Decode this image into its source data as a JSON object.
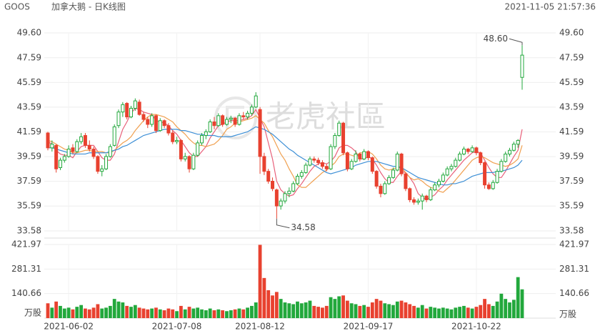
{
  "header": {
    "symbol": "GOOS",
    "name": "加拿大鹅 - 日K线图",
    "timestamp": "2021-11-05 21:57:36"
  },
  "watermark": "老虎社區",
  "chart_data": {
    "type": "candlestick",
    "categories": [
      null,
      null,
      null,
      null,
      null,
      "2021-06-02",
      null,
      null,
      null,
      null,
      null,
      null,
      null,
      null,
      null,
      null,
      null,
      null,
      null,
      null,
      null,
      null,
      null,
      null,
      null,
      null,
      null,
      null,
      null,
      null,
      null,
      "2021-07-08",
      null,
      null,
      null,
      null,
      null,
      null,
      null,
      null,
      null,
      null,
      null,
      null,
      null,
      null,
      null,
      null,
      null,
      null,
      null,
      "2021-08-12",
      null,
      null,
      null,
      null,
      null,
      null,
      null,
      null,
      null,
      null,
      null,
      null,
      null,
      null,
      null,
      null,
      null,
      null,
      null,
      null,
      null,
      null,
      null,
      null,
      null,
      "2021-09-17",
      null,
      null,
      null,
      null,
      null,
      null,
      null,
      null,
      null,
      null,
      null,
      null,
      null,
      null,
      null,
      null,
      null,
      null,
      null,
      null,
      null,
      null,
      null,
      null,
      null,
      "2021-10-22",
      null,
      null,
      null,
      null,
      null,
      null,
      null,
      null,
      null,
      null,
      null
    ],
    "ohlc": [
      [
        41.5,
        41.6,
        40.1,
        40.3
      ],
      [
        40.3,
        40.9,
        40.0,
        40.6
      ],
      [
        40.5,
        40.6,
        38.3,
        38.6
      ],
      [
        38.7,
        39.5,
        38.5,
        39.3
      ],
      [
        39.3,
        39.8,
        39.1,
        39.6
      ],
      [
        39.6,
        40.5,
        39.5,
        40.2
      ],
      [
        40.3,
        40.6,
        39.8,
        40.0
      ],
      [
        40.0,
        41.0,
        39.9,
        40.8
      ],
      [
        40.8,
        41.5,
        40.6,
        41.2
      ],
      [
        41.3,
        41.5,
        40.3,
        40.5
      ],
      [
        40.5,
        40.9,
        40.0,
        40.2
      ],
      [
        40.2,
        40.4,
        39.4,
        39.6
      ],
      [
        39.6,
        39.7,
        38.2,
        38.4
      ],
      [
        38.4,
        38.9,
        38.0,
        38.6
      ],
      [
        38.6,
        39.8,
        38.5,
        39.6
      ],
      [
        39.6,
        40.6,
        39.5,
        40.4
      ],
      [
        40.5,
        42.2,
        40.4,
        42.0
      ],
      [
        42.1,
        43.4,
        41.9,
        43.2
      ],
      [
        43.2,
        44.0,
        42.8,
        43.8
      ],
      [
        43.9,
        44.0,
        42.6,
        42.8
      ],
      [
        42.8,
        43.7,
        42.7,
        43.5
      ],
      [
        43.5,
        44.3,
        43.3,
        44.1
      ],
      [
        44.0,
        44.2,
        42.9,
        43.0
      ],
      [
        43.0,
        43.2,
        42.4,
        42.6
      ],
      [
        42.6,
        42.8,
        41.9,
        42.2
      ],
      [
        42.2,
        43.1,
        42.0,
        42.9
      ],
      [
        42.9,
        43.0,
        41.5,
        41.7
      ],
      [
        41.7,
        42.7,
        41.6,
        42.5
      ],
      [
        42.5,
        42.6,
        41.9,
        42.1
      ],
      [
        42.1,
        42.3,
        41.3,
        41.5
      ],
      [
        41.5,
        41.7,
        40.6,
        40.8
      ],
      [
        40.8,
        41.2,
        40.6,
        40.9
      ],
      [
        40.9,
        41.0,
        39.2,
        39.4
      ],
      [
        39.4,
        39.9,
        39.2,
        39.6
      ],
      [
        39.6,
        39.7,
        38.3,
        38.6
      ],
      [
        38.6,
        39.9,
        38.5,
        39.7
      ],
      [
        39.7,
        40.9,
        39.6,
        40.7
      ],
      [
        40.7,
        41.5,
        40.5,
        41.3
      ],
      [
        41.3,
        41.8,
        41.0,
        41.6
      ],
      [
        41.6,
        42.6,
        41.5,
        42.4
      ],
      [
        42.4,
        42.8,
        41.8,
        42.1
      ],
      [
        42.1,
        43.1,
        42.0,
        42.9
      ],
      [
        42.9,
        43.0,
        42.0,
        42.2
      ],
      [
        42.2,
        42.8,
        42.1,
        42.6
      ],
      [
        42.6,
        42.9,
        42.3,
        42.7
      ],
      [
        42.7,
        42.8,
        42.0,
        42.2
      ],
      [
        42.2,
        43.1,
        42.1,
        42.9
      ],
      [
        42.9,
        43.2,
        42.6,
        42.8
      ],
      [
        42.8,
        43.3,
        42.6,
        43.1
      ],
      [
        43.1,
        43.8,
        42.9,
        43.6
      ],
      [
        43.6,
        44.8,
        43.5,
        44.5
      ],
      [
        43.4,
        43.6,
        38.2,
        39.6
      ],
      [
        39.6,
        39.9,
        38.1,
        38.4
      ],
      [
        38.4,
        38.6,
        37.4,
        37.6
      ],
      [
        37.6,
        37.9,
        36.8,
        37.0
      ],
      [
        36.9,
        37.0,
        34.58,
        35.6
      ],
      [
        35.6,
        36.2,
        35.3,
        36.0
      ],
      [
        36.0,
        36.8,
        35.8,
        36.6
      ],
      [
        36.6,
        37.1,
        36.3,
        36.8
      ],
      [
        36.8,
        37.6,
        36.7,
        37.4
      ],
      [
        37.4,
        38.2,
        37.3,
        38.0
      ],
      [
        38.0,
        38.5,
        37.8,
        38.3
      ],
      [
        38.3,
        39.1,
        38.2,
        38.9
      ],
      [
        38.9,
        39.6,
        38.8,
        39.4
      ],
      [
        39.4,
        39.6,
        39.1,
        39.3
      ],
      [
        39.3,
        39.5,
        38.9,
        39.1
      ],
      [
        39.1,
        39.3,
        38.6,
        38.8
      ],
      [
        38.8,
        39.0,
        38.4,
        38.6
      ],
      [
        38.6,
        40.6,
        38.5,
        40.4
      ],
      [
        40.4,
        41.5,
        40.2,
        41.3
      ],
      [
        41.3,
        42.5,
        41.2,
        42.3
      ],
      [
        42.3,
        42.4,
        39.7,
        39.9
      ],
      [
        39.9,
        40.0,
        38.4,
        38.6
      ],
      [
        38.6,
        39.4,
        38.5,
        39.2
      ],
      [
        39.2,
        40.1,
        39.1,
        39.8
      ],
      [
        39.8,
        39.9,
        39.2,
        39.4
      ],
      [
        39.4,
        40.2,
        39.3,
        40.0
      ],
      [
        40.0,
        40.1,
        39.3,
        39.5
      ],
      [
        39.5,
        39.6,
        38.2,
        38.4
      ],
      [
        38.4,
        38.5,
        37.0,
        37.2
      ],
      [
        37.2,
        37.4,
        36.3,
        36.6
      ],
      [
        36.6,
        37.6,
        36.5,
        37.4
      ],
      [
        37.4,
        38.1,
        37.3,
        37.9
      ],
      [
        37.9,
        38.7,
        37.8,
        38.5
      ],
      [
        38.5,
        40.0,
        38.4,
        39.8
      ],
      [
        39.8,
        39.9,
        38.0,
        38.2
      ],
      [
        38.2,
        38.3,
        36.8,
        37.0
      ],
      [
        37.0,
        37.1,
        35.9,
        36.1
      ],
      [
        36.1,
        36.3,
        35.7,
        35.9
      ],
      [
        35.9,
        36.2,
        35.7,
        36.0
      ],
      [
        36.0,
        36.6,
        35.3,
        36.4
      ],
      [
        36.4,
        36.5,
        35.9,
        36.1
      ],
      [
        36.1,
        37.1,
        36.0,
        36.9
      ],
      [
        36.9,
        37.5,
        36.8,
        37.3
      ],
      [
        37.3,
        37.8,
        37.1,
        37.6
      ],
      [
        37.6,
        38.3,
        37.5,
        38.1
      ],
      [
        38.1,
        38.8,
        38.0,
        38.6
      ],
      [
        38.6,
        39.0,
        38.4,
        38.8
      ],
      [
        38.8,
        39.5,
        38.7,
        39.3
      ],
      [
        39.3,
        40.0,
        39.2,
        39.8
      ],
      [
        39.8,
        40.4,
        39.7,
        40.2
      ],
      [
        40.2,
        40.3,
        39.8,
        40.0
      ],
      [
        40.0,
        40.5,
        39.9,
        40.3
      ],
      [
        40.3,
        40.4,
        39.7,
        39.9
      ],
      [
        39.9,
        40.0,
        38.9,
        39.1
      ],
      [
        39.1,
        39.2,
        37.0,
        37.3
      ],
      [
        37.3,
        37.5,
        36.9,
        37.0
      ],
      [
        37.0,
        37.7,
        36.9,
        37.5
      ],
      [
        37.5,
        38.6,
        37.4,
        38.4
      ],
      [
        38.4,
        39.4,
        38.3,
        39.2
      ],
      [
        39.2,
        40.0,
        39.1,
        39.8
      ],
      [
        39.8,
        40.3,
        39.6,
        40.1
      ],
      [
        40.1,
        40.8,
        40.0,
        40.6
      ],
      [
        40.6,
        41.0,
        40.3,
        40.9
      ],
      [
        46.0,
        48.6,
        45.0,
        47.8
      ]
    ],
    "volume": [
      85,
      60,
      95,
      70,
      55,
      60,
      50,
      65,
      75,
      55,
      50,
      60,
      80,
      55,
      60,
      70,
      110,
      95,
      90,
      70,
      65,
      75,
      60,
      55,
      50,
      55,
      60,
      50,
      45,
      55,
      50,
      40,
      70,
      50,
      65,
      55,
      60,
      50,
      45,
      55,
      45,
      50,
      45,
      40,
      45,
      50,
      55,
      50,
      60,
      70,
      90,
      420,
      230,
      160,
      130,
      150,
      110,
      90,
      85,
      80,
      95,
      85,
      90,
      100,
      70,
      65,
      60,
      70,
      120,
      110,
      125,
      130,
      100,
      85,
      80,
      70,
      75,
      65,
      90,
      110,
      100,
      85,
      80,
      75,
      95,
      100,
      90,
      80,
      70,
      60,
      75,
      55,
      65,
      60,
      55,
      60,
      55,
      50,
      60,
      65,
      70,
      60,
      55,
      65,
      75,
      110,
      80,
      70,
      95,
      140,
      110,
      90,
      105,
      235,
      165
    ],
    "lines": [
      {
        "color": "#e8607a",
        "values": [
          40.8,
          40.6,
          40.1,
          39.8,
          39.7,
          39.7,
          39.5,
          40.0,
          40.4,
          40.5,
          40.5,
          40.5,
          40.0,
          39.5,
          39.3,
          39.3,
          39.8,
          40.8,
          41.8,
          42.4,
          43.1,
          43.5,
          43.4,
          43.2,
          43.1,
          43.0,
          42.5,
          42.4,
          42.3,
          42.1,
          41.7,
          41.4,
          40.9,
          40.4,
          39.9,
          39.6,
          39.6,
          40.0,
          40.4,
          41.1,
          41.6,
          42.1,
          42.2,
          42.4,
          42.5,
          42.5,
          42.5,
          42.6,
          42.7,
          42.9,
          43.4,
          42.7,
          42.0,
          40.7,
          39.4,
          37.6,
          36.9,
          36.6,
          36.4,
          36.5,
          37.0,
          37.4,
          37.9,
          38.4,
          38.8,
          39.0,
          39.1,
          39.0,
          39.2,
          39.6,
          40.3,
          40.5,
          40.5,
          40.3,
          40.0,
          39.4,
          39.4,
          39.6,
          39.4,
          38.9,
          38.3,
          37.8,
          37.5,
          37.5,
          38.0,
          38.4,
          38.3,
          37.9,
          37.4,
          36.6,
          36.3,
          36.1,
          36.3,
          36.5,
          36.9,
          37.2,
          37.7,
          38.1,
          38.5,
          38.9,
          39.3,
          39.6,
          39.9,
          40.0,
          39.9,
          39.3,
          38.7,
          38.2,
          37.9,
          37.9,
          38.4,
          39.0,
          39.6,
          40.1,
          41.8
        ]
      },
      {
        "color": "#f0a050",
        "values": [
          40.9,
          40.8,
          40.6,
          40.4,
          40.2,
          40.1,
          39.9,
          39.9,
          40.0,
          40.1,
          40.1,
          40.0,
          40.0,
          40.0,
          39.9,
          39.9,
          40.1,
          40.4,
          40.7,
          40.9,
          41.2,
          41.7,
          42.1,
          42.5,
          42.8,
          43.0,
          43.0,
          42.9,
          42.8,
          42.6,
          42.4,
          42.0,
          41.7,
          41.4,
          41.0,
          40.7,
          40.5,
          40.5,
          40.4,
          40.5,
          40.6,
          40.9,
          41.3,
          41.8,
          42.0,
          42.3,
          42.4,
          42.5,
          42.6,
          42.7,
          42.9,
          42.6,
          42.3,
          41.7,
          41.2,
          40.5,
          39.8,
          39.3,
          38.6,
          38.0,
          37.3,
          37.1,
          37.1,
          37.4,
          37.7,
          38.0,
          38.3,
          38.5,
          38.8,
          39.1,
          39.6,
          39.8,
          39.8,
          39.7,
          39.6,
          39.9,
          39.9,
          40.0,
          39.8,
          39.4,
          38.9,
          38.6,
          38.5,
          38.6,
          38.7,
          38.7,
          38.3,
          37.9,
          37.7,
          37.8,
          37.6,
          37.3,
          37.1,
          37.0,
          36.8,
          36.7,
          37.0,
          37.3,
          37.7,
          38.1,
          38.5,
          38.9,
          39.3,
          39.5,
          39.6,
          39.5,
          39.3,
          39.1,
          39.0,
          38.9,
          38.8,
          38.9,
          39.1,
          39.4,
          40.5
        ]
      },
      {
        "color": "#3d8fd6",
        "values": [
          40.3,
          40.3,
          40.2,
          40.1,
          40.0,
          39.9,
          39.8,
          39.8,
          39.8,
          39.8,
          39.9,
          39.9,
          39.9,
          39.9,
          39.9,
          40.0,
          40.1,
          40.2,
          40.4,
          40.5,
          40.7,
          40.9,
          41.1,
          41.3,
          41.4,
          41.5,
          41.6,
          41.7,
          41.8,
          41.8,
          41.8,
          41.8,
          41.7,
          41.7,
          41.6,
          41.5,
          41.4,
          41.4,
          41.3,
          41.3,
          41.3,
          41.2,
          41.2,
          41.2,
          41.2,
          41.3,
          41.4,
          41.5,
          41.6,
          41.8,
          42.0,
          41.9,
          41.8,
          41.6,
          41.4,
          41.1,
          40.8,
          40.5,
          40.2,
          40.0,
          39.7,
          39.5,
          39.3,
          39.1,
          38.9,
          38.7,
          38.5,
          38.3,
          38.2,
          38.3,
          38.4,
          38.5,
          38.6,
          38.7,
          38.9,
          39.0,
          39.1,
          39.2,
          39.2,
          39.2,
          39.1,
          39.0,
          38.9,
          38.8,
          38.8,
          38.7,
          38.5,
          38.3,
          38.1,
          37.9,
          37.8,
          37.7,
          37.6,
          37.5,
          37.4,
          37.3,
          37.3,
          37.4,
          37.4,
          37.5,
          37.6,
          37.8,
          38.0,
          38.1,
          38.2,
          38.3,
          38.3,
          38.3,
          38.4,
          38.4,
          38.5,
          38.6,
          38.7,
          38.9,
          39.3
        ]
      }
    ],
    "up_color": "#22a83c",
    "down_color": "#e8412f",
    "ylim": [
      33.58,
      49.6
    ],
    "yticks": [
      {
        "value": 49.6,
        "label": "49.60"
      },
      47.59,
      45.59,
      43.59,
      41.59,
      39.59,
      37.59,
      35.59,
      33.58
    ],
    "vlim": [
      0,
      421.97
    ],
    "vticks": [
      421.97,
      281.31,
      140.66
    ],
    "volume_unit": "万股",
    "high_label": "48.60",
    "low_label": "34.58",
    "grid": true
  }
}
